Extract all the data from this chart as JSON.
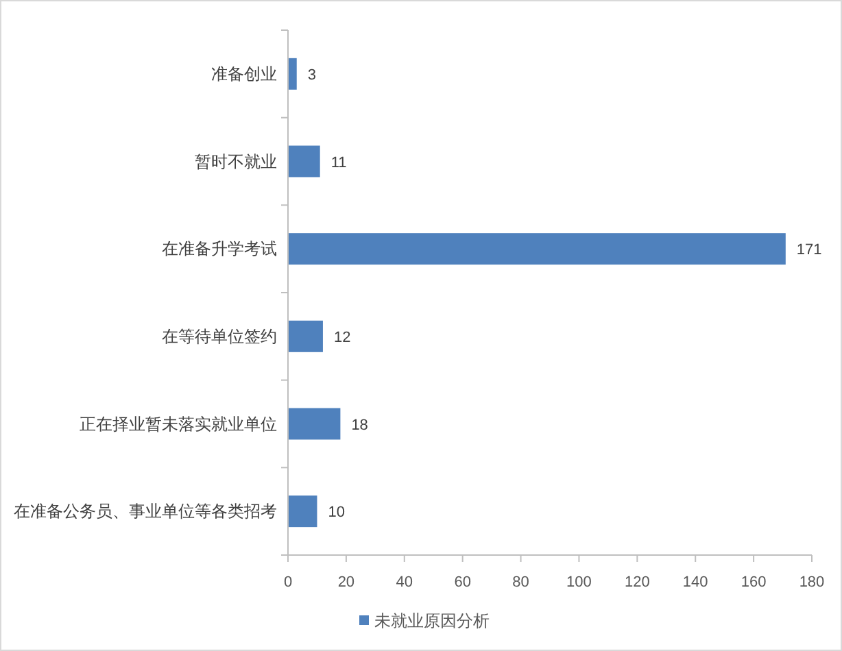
{
  "chart_data": {
    "type": "bar",
    "orientation": "horizontal",
    "categories": [
      "准备创业",
      "暂时不就业",
      "在准备升学考试",
      "在等待单位签约",
      "正在择业暂未落实就业单位",
      "在准备公务员、事业单位等各类招考"
    ],
    "series": [
      {
        "name": "未就业原因分析",
        "color": "#4f81bd",
        "values": [
          3,
          11,
          171,
          12,
          18,
          10
        ]
      }
    ],
    "xlim": [
      0,
      180
    ],
    "xticks": [
      0,
      20,
      40,
      60,
      80,
      100,
      120,
      140,
      160,
      180
    ],
    "data_labels": true,
    "legend": "bottom",
    "grid": false
  }
}
